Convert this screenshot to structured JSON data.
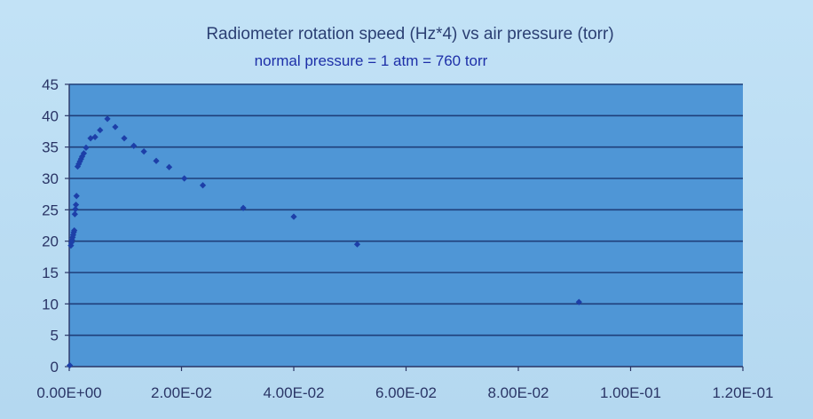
{
  "chart_data": {
    "type": "scatter",
    "title": "Radiometer rotation speed (Hz*4) vs air pressure (torr)",
    "subtitle": "normal pressure = 1 atm = 760 torr",
    "xlabel": "",
    "ylabel": "",
    "xlim": [
      0,
      0.12
    ],
    "ylim": [
      0,
      45
    ],
    "xticks": [
      0,
      0.02,
      0.04,
      0.06,
      0.08,
      0.1,
      0.12
    ],
    "xtick_labels": [
      "0.00E+00",
      "2.00E-02",
      "4.00E-02",
      "6.00E-02",
      "8.00E-02",
      "1.00E-01",
      "1.20E-01"
    ],
    "yticks": [
      0,
      5,
      10,
      15,
      20,
      25,
      30,
      35,
      40,
      45
    ],
    "ytick_labels": [
      "0",
      "5",
      "10",
      "15",
      "20",
      "25",
      "30",
      "35",
      "40",
      "45"
    ],
    "grid": "horizontal",
    "legend": "none",
    "colors": {
      "plot_background": "#4f96d6",
      "gridline": "#1f3f7a",
      "marker": "#1d3fa8",
      "axis": "#2a3566",
      "page_background": "#b9dcf2"
    },
    "points": [
      {
        "x": 0.0001,
        "y": 0.2
      },
      {
        "x": 0.0003,
        "y": 19.3
      },
      {
        "x": 0.0004,
        "y": 19.8
      },
      {
        "x": 0.0005,
        "y": 20.2
      },
      {
        "x": 0.0006,
        "y": 20.6
      },
      {
        "x": 0.0007,
        "y": 21.0
      },
      {
        "x": 0.0008,
        "y": 21.4
      },
      {
        "x": 0.0009,
        "y": 21.7
      },
      {
        "x": 0.001,
        "y": 24.3
      },
      {
        "x": 0.0011,
        "y": 25.1
      },
      {
        "x": 0.0012,
        "y": 25.8
      },
      {
        "x": 0.0013,
        "y": 27.2
      },
      {
        "x": 0.0015,
        "y": 31.9
      },
      {
        "x": 0.0017,
        "y": 32.3
      },
      {
        "x": 0.0019,
        "y": 32.7
      },
      {
        "x": 0.0021,
        "y": 33.1
      },
      {
        "x": 0.0023,
        "y": 33.5
      },
      {
        "x": 0.0026,
        "y": 34.0
      },
      {
        "x": 0.003,
        "y": 34.9
      },
      {
        "x": 0.0038,
        "y": 36.4
      },
      {
        "x": 0.0046,
        "y": 36.6
      },
      {
        "x": 0.0055,
        "y": 37.7
      },
      {
        "x": 0.0068,
        "y": 39.5
      },
      {
        "x": 0.0082,
        "y": 38.2
      },
      {
        "x": 0.0098,
        "y": 36.4
      },
      {
        "x": 0.0115,
        "y": 35.2
      },
      {
        "x": 0.0133,
        "y": 34.3
      },
      {
        "x": 0.0155,
        "y": 32.8
      },
      {
        "x": 0.0178,
        "y": 31.8
      },
      {
        "x": 0.0205,
        "y": 30.0
      },
      {
        "x": 0.0238,
        "y": 28.9
      },
      {
        "x": 0.031,
        "y": 25.3
      },
      {
        "x": 0.04,
        "y": 23.9
      },
      {
        "x": 0.0513,
        "y": 19.5
      },
      {
        "x": 0.0908,
        "y": 10.3
      }
    ]
  }
}
